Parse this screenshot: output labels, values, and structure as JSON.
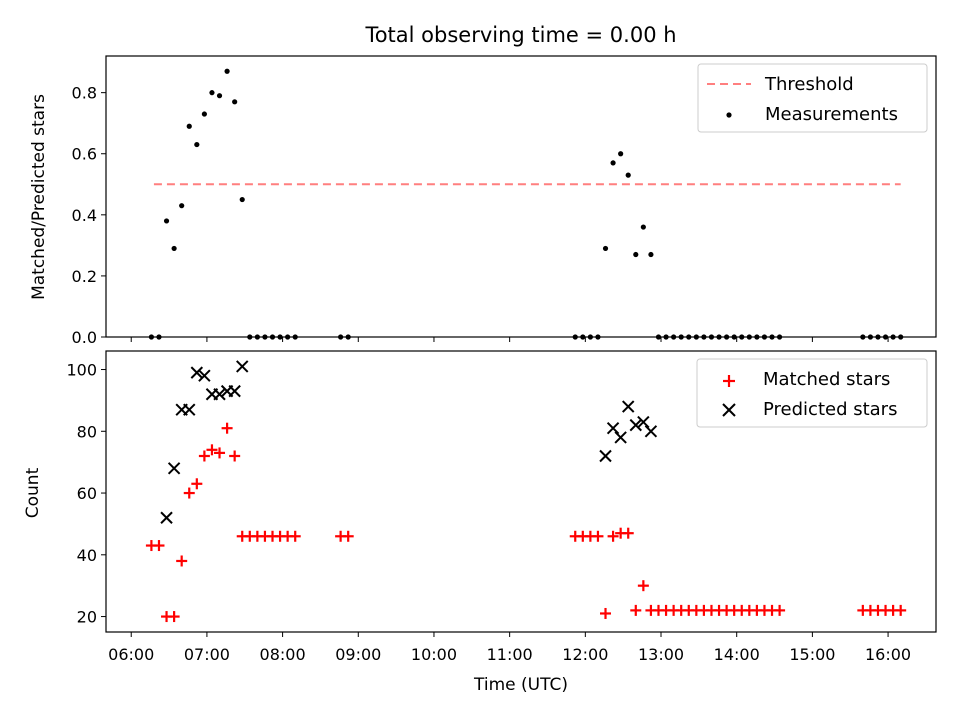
{
  "chart_data": [
    {
      "type": "scatter",
      "title": "Total observing time = 0.00 h",
      "xlabel": "",
      "ylabel": "Matched/Predicted stars",
      "ylim": [
        0,
        0.92
      ],
      "yticks": [
        "0.0",
        "0.2",
        "0.4",
        "0.6",
        "0.8"
      ],
      "yticks_values": [
        0,
        0.2,
        0.4,
        0.6,
        0.8
      ],
      "threshold": {
        "name": "Threshold",
        "value": 0.5,
        "x_range": [
          "06:18",
          "16:10"
        ],
        "color": "#ff7f7f"
      },
      "legend": {
        "position": "top-right",
        "entries": [
          "Threshold",
          "Measurements"
        ]
      },
      "series": [
        {
          "name": "Measurements",
          "color": "#000000",
          "x": [
            "06:16",
            "06:22",
            "06:28",
            "06:34",
            "06:40",
            "06:46",
            "06:52",
            "06:58",
            "07:04",
            "07:10",
            "07:16",
            "07:22",
            "07:28",
            "07:34",
            "07:40",
            "07:46",
            "07:52",
            "07:58",
            "08:04",
            "08:10",
            "08:46",
            "08:52",
            "11:52",
            "11:58",
            "12:04",
            "12:10",
            "12:16",
            "12:22",
            "12:28",
            "12:34",
            "12:40",
            "12:46",
            "12:52",
            "12:58",
            "13:04",
            "13:10",
            "13:16",
            "13:22",
            "13:28",
            "13:34",
            "13:40",
            "13:46",
            "13:52",
            "13:58",
            "14:04",
            "14:10",
            "14:16",
            "14:22",
            "14:28",
            "14:34",
            "15:40",
            "15:46",
            "15:52",
            "15:58",
            "16:04",
            "16:10"
          ],
          "y": [
            0,
            0,
            0.38,
            0.29,
            0.43,
            0.69,
            0.63,
            0.73,
            0.8,
            0.79,
            0.87,
            0.77,
            0.45,
            0,
            0,
            0,
            0,
            0,
            0,
            0,
            0,
            0,
            0,
            0,
            0,
            0,
            0.29,
            0.57,
            0.6,
            0.53,
            0.27,
            0.36,
            0.27,
            0,
            0,
            0,
            0,
            0,
            0,
            0,
            0,
            0,
            0,
            0,
            0,
            0,
            0,
            0,
            0,
            0,
            0,
            0,
            0,
            0,
            0,
            0
          ]
        }
      ]
    },
    {
      "type": "scatter",
      "title": "",
      "xlabel": "Time (UTC)",
      "ylabel": "Count",
      "ylim": [
        15,
        106
      ],
      "yticks": [
        "20",
        "40",
        "60",
        "80",
        "100"
      ],
      "yticks_values": [
        20,
        40,
        60,
        80,
        100
      ],
      "xticks": [
        "06:00",
        "07:00",
        "08:00",
        "09:00",
        "10:00",
        "11:00",
        "12:00",
        "13:00",
        "14:00",
        "15:00",
        "16:00"
      ],
      "xlim": [
        "05:40",
        "16:38"
      ],
      "legend": {
        "position": "top-right",
        "entries": [
          "Matched stars",
          "Predicted stars"
        ]
      },
      "series": [
        {
          "name": "Matched stars",
          "marker": "plus",
          "color": "#ff0000",
          "x": [
            "06:16",
            "06:22",
            "06:28",
            "06:34",
            "06:40",
            "06:46",
            "06:52",
            "06:58",
            "07:04",
            "07:10",
            "07:16",
            "07:22",
            "07:28",
            "07:34",
            "07:40",
            "07:46",
            "07:52",
            "07:58",
            "08:04",
            "08:10",
            "08:46",
            "08:52",
            "11:52",
            "11:58",
            "12:04",
            "12:10",
            "12:16",
            "12:22",
            "12:28",
            "12:34",
            "12:40",
            "12:46",
            "12:52",
            "12:58",
            "13:04",
            "13:10",
            "13:16",
            "13:22",
            "13:28",
            "13:34",
            "13:40",
            "13:46",
            "13:52",
            "13:58",
            "14:04",
            "14:10",
            "14:16",
            "14:22",
            "14:28",
            "14:34",
            "15:40",
            "15:46",
            "15:52",
            "15:58",
            "16:04",
            "16:10"
          ],
          "y": [
            43,
            43,
            20,
            20,
            38,
            60,
            63,
            72,
            74,
            73,
            81,
            72,
            46,
            46,
            46,
            46,
            46,
            46,
            46,
            46,
            46,
            46,
            46,
            46,
            46,
            46,
            21,
            46,
            47,
            47,
            22,
            30,
            22,
            22,
            22,
            22,
            22,
            22,
            22,
            22,
            22,
            22,
            22,
            22,
            22,
            22,
            22,
            22,
            22,
            22,
            22,
            22,
            22,
            22,
            22,
            22
          ]
        },
        {
          "name": "Predicted stars",
          "marker": "x",
          "color": "#000000",
          "x": [
            "06:28",
            "06:34",
            "06:40",
            "06:46",
            "06:52",
            "06:58",
            "07:04",
            "07:10",
            "07:16",
            "07:22",
            "07:28",
            "12:16",
            "12:22",
            "12:28",
            "12:34",
            "12:40",
            "12:46",
            "12:52"
          ],
          "y": [
            52,
            68,
            87,
            87,
            99,
            98,
            92,
            92,
            93,
            93,
            101,
            72,
            81,
            78,
            88,
            82,
            83,
            80
          ]
        }
      ]
    }
  ]
}
